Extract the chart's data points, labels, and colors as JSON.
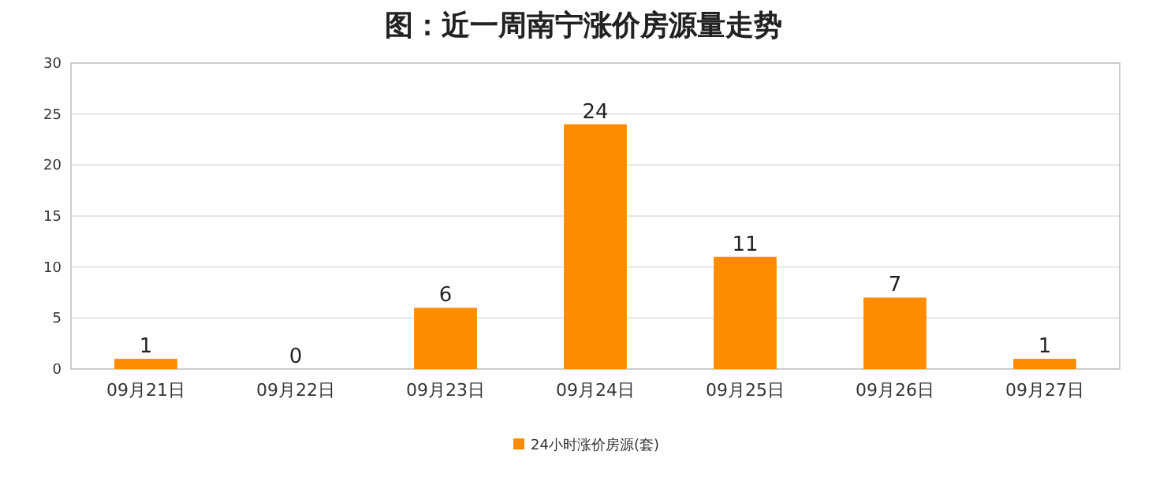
{
  "chart_data": {
    "type": "bar",
    "title": "图：近一周南宁涨价房源量走势",
    "categories": [
      "09月21日",
      "09月22日",
      "09月23日",
      "09月24日",
      "09月25日",
      "09月26日",
      "09月27日"
    ],
    "series": [
      {
        "name": "24小时涨价房源(套)",
        "color": "#ff8c00",
        "values": [
          1,
          0,
          6,
          24,
          11,
          7,
          1
        ]
      }
    ],
    "ylim": [
      0,
      30
    ],
    "yticks": [
      0,
      5,
      10,
      15,
      20,
      25,
      30
    ],
    "grid": "y",
    "legend": "bottom",
    "data_labels": true
  }
}
